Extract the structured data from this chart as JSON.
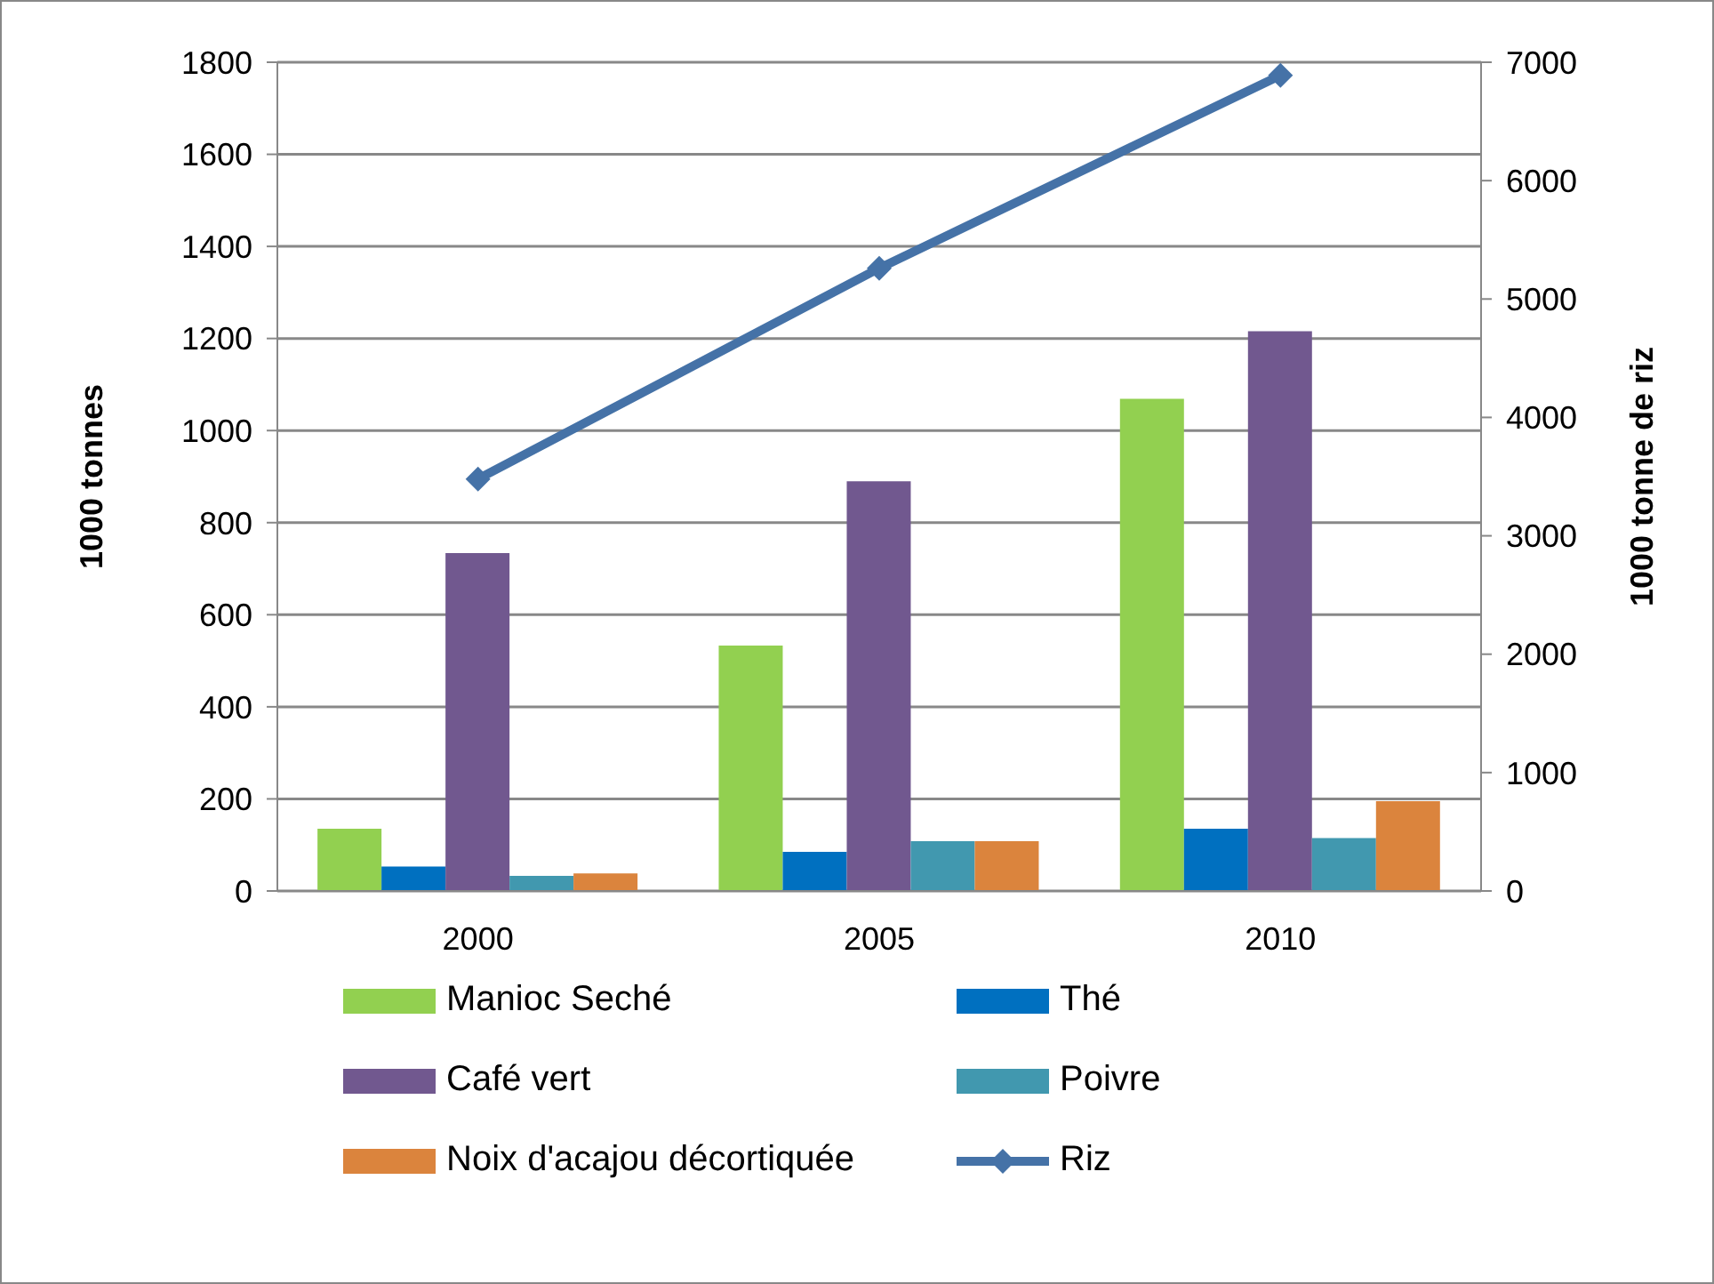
{
  "chart_data": {
    "type": "bar",
    "ylabel": "1000 tonnes",
    "y2label": "1000 tonne de riz",
    "categories": [
      "2000",
      "2005",
      "2010"
    ],
    "series": [
      {
        "name": "Manioc Seché",
        "color": "#92d050",
        "values": [
          135,
          533,
          1069
        ]
      },
      {
        "name": "Thé",
        "color": "#0070c0",
        "values": [
          53,
          85,
          135
        ]
      },
      {
        "name": "Café vert",
        "color": "#71588f",
        "values": [
          734,
          890,
          1216
        ]
      },
      {
        "name": "Poivre",
        "color": "#4198af",
        "values": [
          33,
          108,
          115
        ]
      },
      {
        "name": "Noix d'acajou décortiquée",
        "color": "#db843d",
        "values": [
          38,
          108,
          195
        ]
      },
      {
        "name": "Riz",
        "type": "line",
        "axis": "y2",
        "color": "#4572a7",
        "marker": "diamond",
        "values": [
          3480,
          5260,
          6890
        ]
      }
    ],
    "ylim": [
      0,
      1800
    ],
    "yticks": [
      0,
      200,
      400,
      600,
      800,
      1000,
      1200,
      1400,
      1600,
      1800
    ],
    "y2lim": [
      0,
      7000
    ],
    "y2ticks": [
      0,
      1000,
      2000,
      3000,
      4000,
      5000,
      6000,
      7000
    ],
    "grid": "y",
    "legend": "bottom"
  }
}
